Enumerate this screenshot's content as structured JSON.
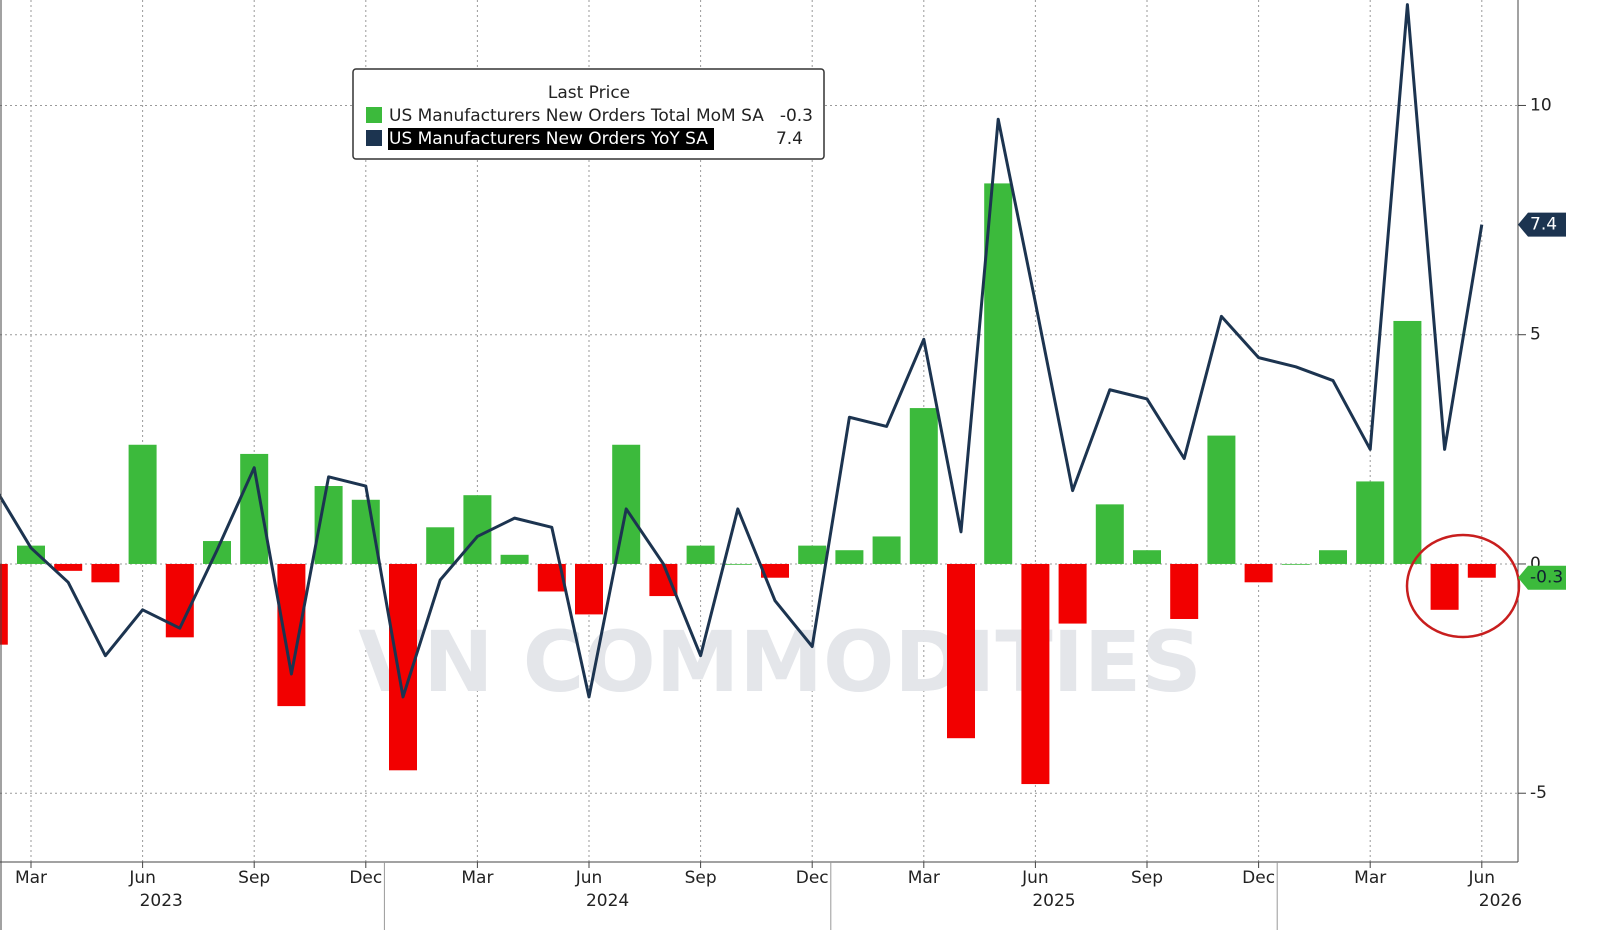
{
  "chart_data": {
    "type": "bar_line",
    "legend_title": "Last Price",
    "watermark": "VN COMMODITIES",
    "categories": [
      null,
      "Mar",
      null,
      null,
      "Jun",
      null,
      null,
      "Sep",
      null,
      null,
      "Dec",
      null,
      null,
      "Mar",
      null,
      null,
      "Jun",
      null,
      null,
      "Sep",
      null,
      null,
      "Dec",
      null,
      null,
      "Mar",
      null,
      null,
      "Jun",
      null,
      null,
      "Sep",
      null,
      null,
      "Dec",
      null,
      null,
      "Mar",
      null,
      null,
      "Jun"
    ],
    "years": [
      "2023",
      "2024",
      "2025",
      "2026"
    ],
    "series": [
      {
        "name": "US Manufacturers New Orders Total MoM SA",
        "type": "bar",
        "color": "#3cba3c",
        "negative_color": "#f20000",
        "last_label": "-0.3",
        "values": [
          -1.76,
          0.4,
          -0.15,
          -0.4,
          2.6,
          -1.6,
          0.5,
          2.4,
          -3.1,
          1.7,
          1.4,
          -4.5,
          0.8,
          1.5,
          0.2,
          -0.6,
          -1.1,
          2.6,
          -0.7,
          0.4,
          0.0,
          -0.3,
          0.4,
          0.3,
          0.6,
          3.4,
          -3.8,
          8.3,
          -4.8,
          -1.3,
          1.3,
          0.3,
          -1.2,
          2.8,
          -0.4,
          0.0,
          0.3,
          1.8,
          5.3,
          -1.0,
          -0.3
        ]
      },
      {
        "name": "US Manufacturers New Orders YoY SA",
        "type": "line",
        "color": "#1c3450",
        "last_label": "7.4",
        "values": [
          1.7,
          0.35,
          -0.4,
          -2.0,
          -1.0,
          -1.4,
          0.3,
          2.1,
          -2.4,
          1.9,
          1.7,
          -2.9,
          -0.35,
          0.6,
          1.0,
          0.8,
          -2.9,
          1.2,
          0.0,
          -2.0,
          1.2,
          -0.8,
          -1.8,
          3.2,
          3.0,
          4.9,
          0.7,
          9.7,
          5.7,
          1.6,
          3.8,
          3.6,
          2.3,
          5.4,
          4.5,
          4.3,
          4.0,
          2.5,
          12.2,
          2.5,
          7.4
        ]
      }
    ],
    "ylim": [
      -6.5,
      12.3
    ],
    "yticks": [
      -5,
      0,
      5,
      10
    ],
    "grid": true
  }
}
